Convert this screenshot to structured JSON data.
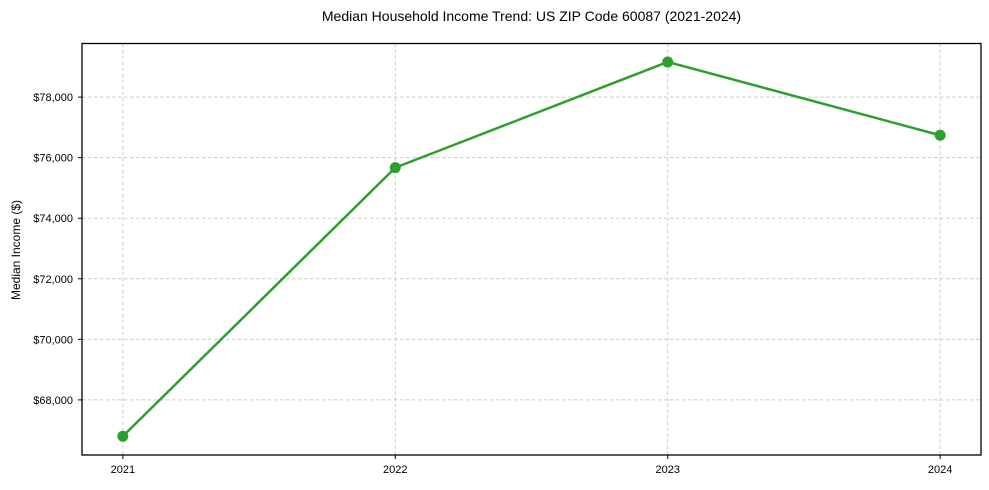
{
  "chart_data": {
    "type": "line",
    "title": "Median Household Income Trend: US ZIP Code 60087 (2021-2024)",
    "xlabel": "",
    "ylabel": "Median Income ($)",
    "categories": [
      "2021",
      "2022",
      "2023",
      "2024"
    ],
    "series": [
      {
        "name": "Median Household Income",
        "values": [
          66800,
          75670,
          79160,
          76740
        ]
      }
    ],
    "yticks": [
      {
        "value": 68000,
        "label": "$68,000"
      },
      {
        "value": 70000,
        "label": "$70,000"
      },
      {
        "value": 72000,
        "label": "$72,000"
      },
      {
        "value": 74000,
        "label": "$74,000"
      },
      {
        "value": 76000,
        "label": "$76,000"
      },
      {
        "value": 78000,
        "label": "$78,000"
      }
    ],
    "ylim": [
      66180,
      79770
    ],
    "x_margin_fraction": 0.15,
    "grid": true,
    "grid_style": "dashed",
    "legend_position": "none",
    "colors": {
      "line": "#2ca02c",
      "marker": "#2ca02c",
      "grid": "#cccccc",
      "spine": "#000000",
      "tick_text": "#000000",
      "background": "#ffffff"
    }
  }
}
